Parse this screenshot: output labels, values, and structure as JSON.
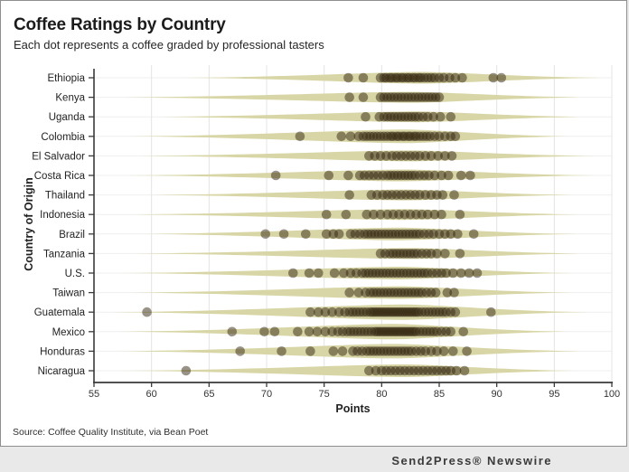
{
  "header": {
    "title": "Coffee Ratings by Country",
    "subtitle": "Each dot represents a coffee graded by professional tasters"
  },
  "footer": {
    "source": "Source: Coffee Quality Institute, via Bean Poet",
    "newswire": "Send2Press® Newswire"
  },
  "colors": {
    "violin": "#d8d6a6",
    "dot": "#33250f",
    "dot_opacity": 0.5,
    "axis": "#3a3a3a",
    "grid": "#e4e4e4",
    "row_grid": "#efefef",
    "tick_text": "#333333",
    "banner_bg": "#e9e9e9"
  },
  "chart_data": {
    "type": "scatter",
    "title": "Coffee Ratings by Country",
    "subtitle": "Each dot represents a coffee graded by professional tasters",
    "xlabel": "Points",
    "ylabel": "Country of Origin",
    "xlim": [
      55,
      100
    ],
    "x_ticks": [
      55,
      60,
      65,
      70,
      75,
      80,
      85,
      90,
      95,
      100
    ],
    "grid": true,
    "legend": "none",
    "categories": [
      "Ethiopia",
      "Kenya",
      "Uganda",
      "Colombia",
      "El Salvador",
      "Costa Rica",
      "Thailand",
      "Indonesia",
      "Brazil",
      "Tanzania",
      "U.S.",
      "Taiwan",
      "Guatemala",
      "Mexico",
      "Honduras",
      "Nicaragua"
    ],
    "series": [
      {
        "country": "Ethiopia",
        "violin_range": [
          63,
          99
        ],
        "violin_peak": 83.5,
        "violin_halfheight": 6.5,
        "points": [
          77.1,
          78.4,
          79.9,
          80.2,
          80.4,
          80.7,
          80.9,
          81.2,
          81.4,
          81.7,
          81.9,
          82.2,
          82.4,
          82.7,
          82.9,
          83.2,
          83.4,
          83.7,
          84.0,
          84.3,
          84.6,
          85.0,
          85.4,
          85.9,
          86.4,
          87.0,
          89.7,
          90.4
        ]
      },
      {
        "country": "Kenya",
        "violin_range": [
          57.5,
          97.5
        ],
        "violin_peak": 82.5,
        "violin_halfheight": 6,
        "points": [
          77.2,
          78.4,
          79.9,
          80.2,
          80.5,
          80.8,
          81.1,
          81.4,
          81.7,
          82.0,
          82.3,
          82.6,
          82.9,
          83.2,
          83.5,
          83.8,
          84.1,
          84.4,
          84.7,
          85.0
        ]
      },
      {
        "country": "Uganda",
        "violin_range": [
          60.5,
          97.5
        ],
        "violin_peak": 83,
        "violin_halfheight": 6,
        "points": [
          78.6,
          79.8,
          80.2,
          80.5,
          80.8,
          81.1,
          81.4,
          81.7,
          82.0,
          82.3,
          82.6,
          82.9,
          83.2,
          83.6,
          84.0,
          84.5,
          85.1,
          86.0
        ]
      },
      {
        "country": "Colombia",
        "violin_range": [
          58,
          96.5
        ],
        "violin_peak": 82,
        "violin_halfheight": 7.5,
        "points": [
          72.9,
          76.5,
          77.3,
          78.0,
          78.4,
          78.7,
          79.0,
          79.3,
          79.6,
          79.9,
          80.2,
          80.5,
          80.8,
          81.0,
          81.3,
          81.5,
          81.8,
          82.0,
          82.3,
          82.5,
          82.8,
          83.0,
          83.3,
          83.6,
          83.9,
          84.2,
          84.6,
          85.0,
          85.5,
          86.0,
          86.4
        ]
      },
      {
        "country": "El Salvador",
        "violin_range": [
          59,
          98.5
        ],
        "violin_peak": 82.5,
        "violin_halfheight": 6,
        "points": [
          78.9,
          79.4,
          79.9,
          80.4,
          80.9,
          81.3,
          81.7,
          82.1,
          82.5,
          82.9,
          83.3,
          83.8,
          84.3,
          84.9,
          85.5,
          86.1
        ]
      },
      {
        "country": "Costa Rica",
        "violin_range": [
          58,
          98.5
        ],
        "violin_peak": 82,
        "violin_halfheight": 6.5,
        "points": [
          70.8,
          75.4,
          77.1,
          78.1,
          78.5,
          78.9,
          79.3,
          79.7,
          80.1,
          80.5,
          80.8,
          81.1,
          81.4,
          81.7,
          82.0,
          82.3,
          82.6,
          82.9,
          83.3,
          83.7,
          84.1,
          84.6,
          85.2,
          85.8,
          86.9,
          87.7
        ]
      },
      {
        "country": "Thailand",
        "violin_range": [
          60,
          96.5
        ],
        "violin_peak": 82,
        "violin_halfheight": 6,
        "points": [
          77.2,
          79.1,
          79.6,
          80.1,
          80.5,
          80.9,
          81.3,
          81.7,
          82.1,
          82.5,
          82.9,
          83.3,
          83.8,
          84.3,
          84.8,
          85.3,
          86.3
        ]
      },
      {
        "country": "Indonesia",
        "violin_range": [
          58.5,
          97.5
        ],
        "violin_peak": 82,
        "violin_halfheight": 6,
        "points": [
          75.2,
          76.9,
          78.7,
          79.3,
          79.9,
          80.5,
          81.0,
          81.5,
          82.0,
          82.5,
          83.0,
          83.5,
          84.0,
          84.6,
          85.2,
          86.8
        ]
      },
      {
        "country": "Brazil",
        "violin_range": [
          59,
          97
        ],
        "violin_peak": 81.5,
        "violin_halfheight": 7,
        "points": [
          69.9,
          71.5,
          73.4,
          75.2,
          75.8,
          76.3,
          77.3,
          77.7,
          78.1,
          78.5,
          78.8,
          79.1,
          79.4,
          79.7,
          80.0,
          80.3,
          80.6,
          80.9,
          81.2,
          81.5,
          81.8,
          82.1,
          82.4,
          82.7,
          83.0,
          83.3,
          83.7,
          84.1,
          84.5,
          85.0,
          85.5,
          86.0,
          86.6,
          88.0
        ]
      },
      {
        "country": "Tanzania",
        "violin_range": [
          58.5,
          97.5
        ],
        "violin_peak": 82.5,
        "violin_halfheight": 6,
        "points": [
          79.9,
          80.3,
          80.7,
          81.0,
          81.3,
          81.6,
          81.9,
          82.2,
          82.5,
          82.8,
          83.1,
          83.5,
          83.9,
          84.3,
          84.8,
          85.5,
          86.8
        ]
      },
      {
        "country": "U.S.",
        "violin_range": [
          57.5,
          96.5
        ],
        "violin_peak": 81.5,
        "violin_halfheight": 7,
        "points": [
          72.3,
          73.7,
          74.5,
          75.9,
          76.7,
          77.3,
          77.8,
          78.3,
          78.6,
          78.9,
          79.2,
          79.5,
          79.8,
          80.1,
          80.4,
          80.7,
          81.0,
          81.3,
          81.6,
          81.9,
          82.2,
          82.5,
          82.8,
          83.1,
          83.4,
          83.7,
          84.0,
          84.4,
          84.8,
          85.2,
          85.6,
          86.2,
          86.9,
          87.6,
          88.3
        ]
      },
      {
        "country": "Taiwan",
        "violin_range": [
          58,
          96.5
        ],
        "violin_peak": 81.5,
        "violin_halfheight": 7,
        "points": [
          77.2,
          78.0,
          78.6,
          79.0,
          79.3,
          79.6,
          79.9,
          80.2,
          80.5,
          80.8,
          81.1,
          81.4,
          81.7,
          82.0,
          82.3,
          82.6,
          82.9,
          83.2,
          83.5,
          83.9,
          84.3,
          84.7,
          85.7,
          86.3
        ]
      },
      {
        "country": "Guatemala",
        "violin_range": [
          56.5,
          98
        ],
        "violin_peak": 82,
        "violin_halfheight": 8.5,
        "points": [
          59.6,
          73.8,
          74.5,
          75.1,
          75.7,
          76.3,
          76.8,
          77.2,
          77.5,
          77.8,
          78.1,
          78.4,
          78.7,
          79.0,
          79.2,
          79.4,
          79.6,
          79.8,
          80.0,
          80.2,
          80.4,
          80.6,
          80.8,
          81.0,
          81.2,
          81.4,
          81.6,
          81.8,
          82.0,
          82.2,
          82.4,
          82.6,
          82.8,
          83.0,
          83.2,
          83.5,
          83.8,
          84.1,
          84.4,
          84.7,
          85.0,
          85.3,
          85.6,
          86.0,
          86.4,
          89.5
        ]
      },
      {
        "country": "Mexico",
        "violin_range": [
          57,
          96.5
        ],
        "violin_peak": 81,
        "violin_halfheight": 8.5,
        "points": [
          67.0,
          69.8,
          70.7,
          72.7,
          73.7,
          74.4,
          75.1,
          75.7,
          76.2,
          76.6,
          77.0,
          77.3,
          77.6,
          77.9,
          78.2,
          78.5,
          78.8,
          79.1,
          79.4,
          79.6,
          79.8,
          80.0,
          80.2,
          80.4,
          80.6,
          80.8,
          81.0,
          81.2,
          81.4,
          81.6,
          81.8,
          82.0,
          82.2,
          82.4,
          82.6,
          82.8,
          83.0,
          83.3,
          83.6,
          83.9,
          84.2,
          84.5,
          84.8,
          85.2,
          85.6,
          86.0,
          87.1
        ]
      },
      {
        "country": "Honduras",
        "violin_range": [
          57,
          97.5
        ],
        "violin_peak": 81,
        "violin_halfheight": 8,
        "points": [
          67.7,
          71.3,
          73.8,
          75.8,
          76.6,
          77.5,
          77.9,
          78.3,
          78.7,
          79.0,
          79.3,
          79.6,
          79.9,
          80.2,
          80.5,
          80.8,
          81.1,
          81.4,
          81.7,
          82.0,
          82.3,
          82.6,
          83.0,
          83.4,
          83.8,
          84.3,
          84.8,
          85.4,
          86.2,
          87.4
        ]
      },
      {
        "country": "Nicaragua",
        "violin_range": [
          57.5,
          97
        ],
        "violin_peak": 82,
        "violin_halfheight": 7,
        "points": [
          63.0,
          78.9,
          79.5,
          80.0,
          80.4,
          80.8,
          81.2,
          81.6,
          82.0,
          82.4,
          82.8,
          83.2,
          83.6,
          84.0,
          84.4,
          84.8,
          85.2,
          85.6,
          86.0,
          86.5,
          87.2
        ]
      }
    ]
  }
}
